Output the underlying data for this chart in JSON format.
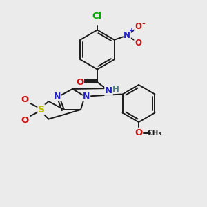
{
  "bg_color": "#ebebeb",
  "bond_color": "#1a1a1a",
  "bond_width": 1.4,
  "atom_colors": {
    "C": "#1a1a1a",
    "H": "#4a7a7a",
    "N": "#2222cc",
    "O": "#cc1111",
    "S": "#bbbb00",
    "Cl": "#00aa00"
  },
  "font_size": 8.5,
  "fig_size": [
    3.0,
    3.0
  ],
  "dpi": 100
}
